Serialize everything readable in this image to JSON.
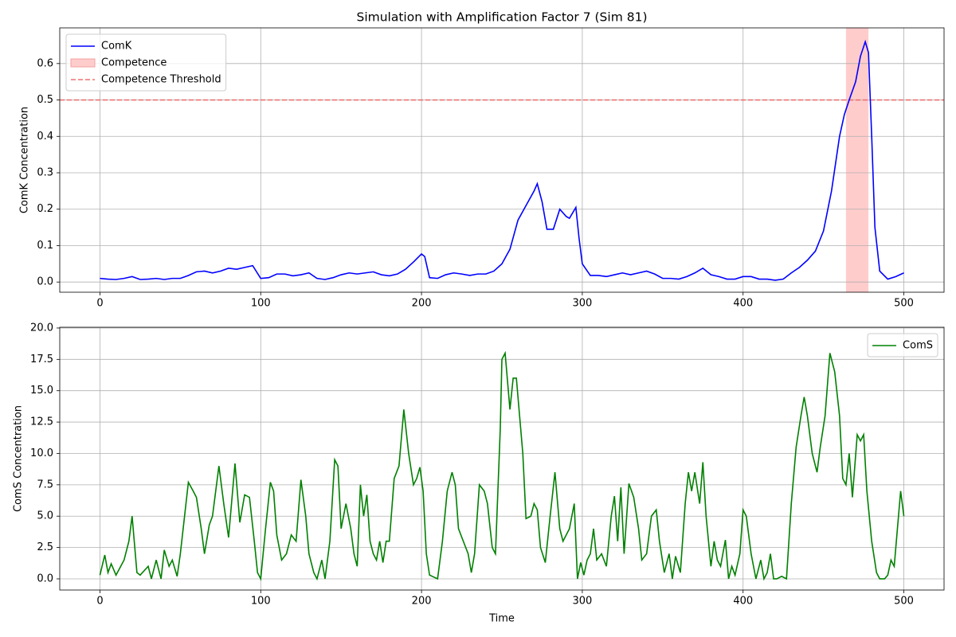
{
  "chart_data": [
    {
      "type": "line",
      "title": "Simulation with Amplification Factor 7 (Sim 81)",
      "ylabel": "ComK Concentration",
      "xlim": [
        -25,
        525
      ],
      "ylim": [
        -0.028,
        0.698
      ],
      "xticks": [
        0,
        100,
        200,
        300,
        400,
        500
      ],
      "yticks": [
        {
          "value": 0,
          "label": "0.0"
        },
        0.1,
        0.2,
        0.3,
        0.4,
        0.5,
        0.6
      ],
      "grid": true,
      "legend": "upper left",
      "series": [
        {
          "name": "ComK",
          "color": "#0000ff",
          "x": [
            0,
            5,
            10,
            15,
            20,
            25,
            30,
            35,
            40,
            45,
            50,
            55,
            60,
            65,
            70,
            75,
            80,
            85,
            90,
            95,
            100,
            105,
            110,
            115,
            120,
            125,
            130,
            135,
            140,
            145,
            150,
            155,
            160,
            165,
            170,
            175,
            180,
            185,
            190,
            195,
            200,
            202,
            205,
            210,
            215,
            220,
            225,
            230,
            235,
            240,
            245,
            250,
            255,
            260,
            265,
            270,
            272,
            275,
            278,
            282,
            286,
            290,
            292,
            296,
            298,
            300,
            305,
            310,
            315,
            320,
            325,
            330,
            335,
            340,
            345,
            350,
            355,
            360,
            365,
            370,
            375,
            380,
            385,
            390,
            395,
            400,
            405,
            410,
            415,
            420,
            425,
            430,
            435,
            440,
            445,
            450,
            455,
            460,
            463,
            466,
            470,
            473,
            476,
            478,
            480,
            482,
            485,
            490,
            495,
            500
          ],
          "values": [
            0.01,
            0.008,
            0.007,
            0.01,
            0.015,
            0.007,
            0.008,
            0.01,
            0.007,
            0.01,
            0.01,
            0.018,
            0.028,
            0.03,
            0.025,
            0.03,
            0.038,
            0.035,
            0.04,
            0.045,
            0.01,
            0.012,
            0.022,
            0.022,
            0.017,
            0.02,
            0.025,
            0.01,
            0.007,
            0.012,
            0.02,
            0.025,
            0.022,
            0.025,
            0.028,
            0.02,
            0.017,
            0.022,
            0.035,
            0.055,
            0.077,
            0.07,
            0.012,
            0.01,
            0.02,
            0.025,
            0.022,
            0.018,
            0.022,
            0.022,
            0.03,
            0.05,
            0.09,
            0.17,
            0.21,
            0.25,
            0.27,
            0.22,
            0.145,
            0.145,
            0.2,
            0.18,
            0.175,
            0.205,
            0.12,
            0.05,
            0.018,
            0.018,
            0.015,
            0.02,
            0.025,
            0.02,
            0.025,
            0.03,
            0.022,
            0.01,
            0.01,
            0.008,
            0.015,
            0.025,
            0.038,
            0.02,
            0.015,
            0.008,
            0.008,
            0.015,
            0.015,
            0.008,
            0.008,
            0.005,
            0.008,
            0.025,
            0.04,
            0.06,
            0.085,
            0.14,
            0.25,
            0.4,
            0.46,
            0.5,
            0.55,
            0.62,
            0.66,
            0.63,
            0.4,
            0.15,
            0.03,
            0.008,
            0.015,
            0.025
          ]
        }
      ],
      "shaded_regions": [
        {
          "name": "Competence",
          "color": "#ffcccc",
          "x": [
            464,
            478
          ]
        }
      ],
      "hlines": [
        {
          "name": "Competence Threshold",
          "value": 0.5,
          "color": "#f07070"
        }
      ]
    },
    {
      "type": "line",
      "xlabel": "Time",
      "ylabel": "ComS Concentration",
      "xlim": [
        -25,
        525
      ],
      "ylim": [
        -0.89,
        20.06
      ],
      "xticks": [
        0,
        100,
        200,
        300,
        400,
        500
      ],
      "yticks": [
        {
          "value": 0,
          "label": "0.0"
        },
        2.5,
        {
          "value": 5,
          "label": "5.0"
        },
        7.5,
        {
          "value": 10,
          "label": "10.0"
        },
        12.5,
        {
          "value": 15,
          "label": "15.0"
        },
        17.5,
        {
          "value": 20,
          "label": "20.0"
        }
      ],
      "grid": true,
      "legend": "upper right",
      "series": [
        {
          "name": "ComS",
          "color": "#008000",
          "x": [
            0,
            3,
            5,
            7,
            10,
            15,
            18,
            20,
            23,
            25,
            30,
            32,
            35,
            38,
            40,
            43,
            45,
            48,
            50,
            55,
            58,
            60,
            63,
            65,
            68,
            70,
            74,
            77,
            80,
            84,
            87,
            90,
            93,
            96,
            98,
            100,
            103,
            106,
            108,
            110,
            113,
            116,
            119,
            122,
            125,
            128,
            130,
            133,
            135,
            138,
            140,
            143,
            146,
            148,
            150,
            153,
            156,
            158,
            160,
            162,
            164,
            166,
            168,
            170,
            172,
            174,
            176,
            178,
            180,
            183,
            186,
            189,
            192,
            195,
            197,
            199,
            201,
            203,
            205,
            210,
            213,
            216,
            219,
            221,
            223,
            226,
            229,
            231,
            233,
            236,
            239,
            241,
            244,
            246,
            249,
            250,
            252,
            255,
            257,
            259,
            261,
            263,
            265,
            268,
            270,
            272,
            274,
            277,
            280,
            283,
            286,
            288,
            292,
            295,
            297,
            299,
            301,
            303,
            305,
            307,
            309,
            312,
            315,
            318,
            320,
            322,
            324,
            326,
            329,
            332,
            335,
            337,
            340,
            343,
            346,
            348,
            351,
            354,
            356,
            358,
            361,
            364,
            366,
            368,
            370,
            373,
            375,
            377,
            380,
            382,
            384,
            386,
            389,
            391,
            393,
            395,
            398,
            400,
            402,
            405,
            408,
            411,
            413,
            415,
            417,
            419,
            421,
            424,
            427,
            430,
            433,
            436,
            438,
            440,
            443,
            446,
            448,
            451,
            454,
            457,
            460,
            462,
            464,
            466,
            468,
            471,
            473,
            475,
            477,
            480,
            483,
            485,
            488,
            490,
            492,
            494,
            496,
            498,
            500
          ],
          "values": [
            0.3,
            1.9,
            0.5,
            1.2,
            0.3,
            1.5,
            3,
            5,
            0.5,
            0.3,
            1,
            0,
            1.5,
            0,
            2.3,
            1,
            1.5,
            0.2,
            2,
            7.7,
            7,
            6.5,
            4,
            2,
            4.3,
            5,
            9,
            6,
            3.3,
            9.2,
            4.5,
            6.7,
            6.5,
            3,
            0.5,
            0,
            4,
            7.7,
            7,
            3.5,
            1.5,
            2,
            3.5,
            3,
            7.9,
            5,
            2,
            0.5,
            0,
            1.5,
            0,
            3,
            9.5,
            9,
            4,
            6,
            4,
            2,
            1,
            7.5,
            5,
            6.7,
            3,
            2,
            1.5,
            3,
            1.3,
            3,
            3,
            8,
            9,
            13.5,
            10,
            7.5,
            8,
            8.9,
            7,
            2,
            0.3,
            0,
            3,
            7,
            8.5,
            7.5,
            4,
            3,
            2,
            0.5,
            2,
            7.5,
            7,
            6,
            2.5,
            2,
            12,
            17.5,
            18,
            13.5,
            16,
            16,
            13,
            10,
            4.8,
            5,
            6,
            5.5,
            2.5,
            1.3,
            5,
            8.5,
            4,
            3,
            4,
            6,
            0,
            1.3,
            0.3,
            1.5,
            2,
            4,
            1.5,
            2,
            1,
            5,
            6.6,
            3,
            7.3,
            2,
            7.6,
            6.5,
            4,
            1.5,
            2,
            5,
            5.5,
            3,
            0.5,
            2,
            0,
            1.8,
            0.5,
            6,
            8.5,
            7,
            8.5,
            6,
            9.3,
            5,
            1,
            3,
            1.5,
            1,
            3.1,
            0,
            1,
            0.3,
            2,
            5.5,
            5,
            2,
            0,
            1.5,
            0,
            0.5,
            2,
            0,
            0,
            0.2,
            0,
            6,
            10.5,
            13,
            14.5,
            13,
            10,
            8.5,
            10.5,
            13,
            18,
            16.5,
            13,
            8,
            7.5,
            10,
            6.5,
            11.5,
            11,
            11.5,
            7,
            3,
            0.5,
            0,
            0,
            0.3,
            1.5,
            1,
            4,
            7,
            5
          ]
        }
      ]
    }
  ]
}
